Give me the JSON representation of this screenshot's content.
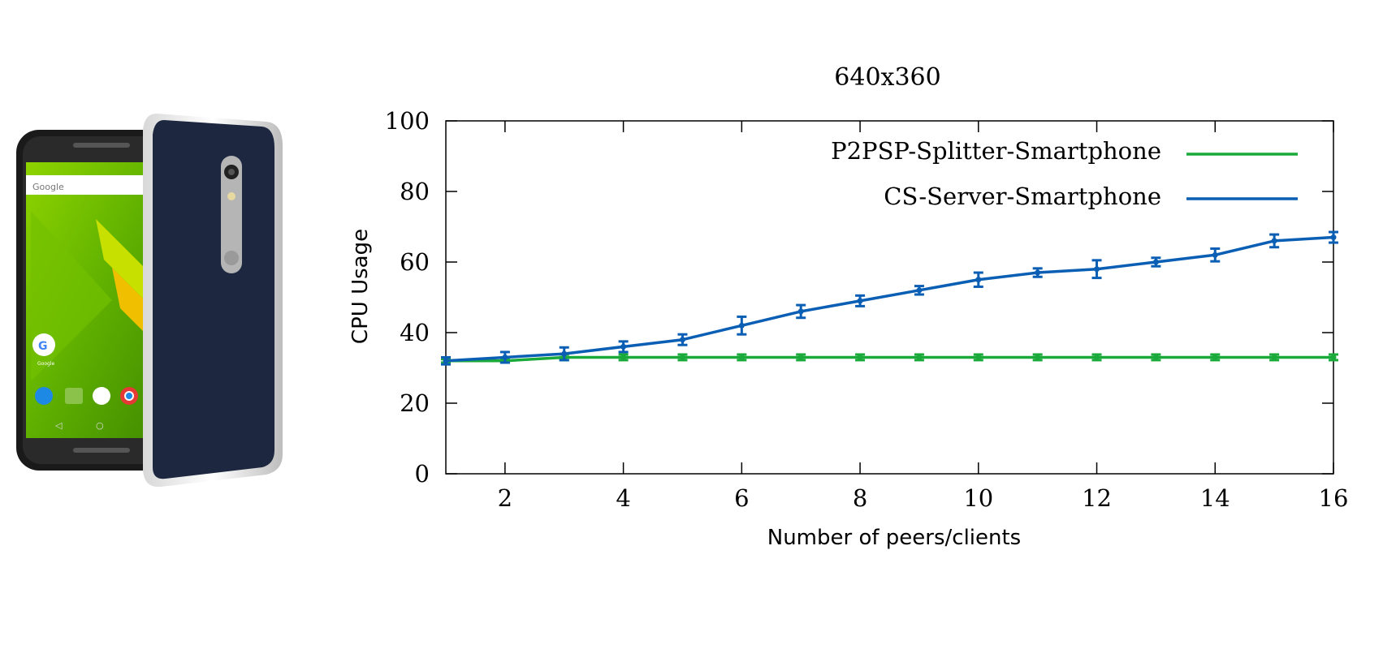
{
  "image": {
    "google_label": "Google",
    "google_icon_label": "Google"
  },
  "chart_data": {
    "type": "line",
    "title": "640x360",
    "xlabel": "Number of peers/clients",
    "ylabel": "CPU Usage",
    "xlim": [
      1,
      16
    ],
    "ylim": [
      0,
      100
    ],
    "x_ticks": [
      2,
      4,
      6,
      8,
      10,
      12,
      14,
      16
    ],
    "y_ticks": [
      0,
      20,
      40,
      60,
      80,
      100
    ],
    "grid": false,
    "legend_position": "top-right",
    "x": [
      1,
      2,
      3,
      4,
      5,
      6,
      7,
      8,
      9,
      10,
      11,
      12,
      13,
      14,
      15,
      16
    ],
    "series": [
      {
        "name": "P2PSP-Splitter-Smartphone",
        "color": "#1aaa3a",
        "values": [
          32,
          32,
          33,
          33,
          33,
          33,
          33,
          33,
          33,
          33,
          33,
          33,
          33,
          33,
          33,
          33
        ],
        "errors": [
          0.5,
          0.5,
          0.8,
          0.8,
          0.8,
          0.8,
          0.8,
          0.8,
          0.8,
          0.8,
          0.8,
          0.8,
          0.8,
          0.8,
          0.8,
          0.8
        ]
      },
      {
        "name": "CS-Server-Smartphone",
        "color": "#0a5fb4",
        "values": [
          32,
          33,
          34,
          36,
          38,
          42,
          46,
          49,
          52,
          55,
          57,
          58,
          60,
          62,
          66,
          67
        ],
        "errors": [
          1.0,
          1.5,
          1.8,
          1.5,
          1.5,
          2.5,
          1.8,
          1.5,
          1.2,
          2.0,
          1.2,
          2.5,
          1.2,
          1.8,
          1.8,
          1.5
        ]
      }
    ]
  }
}
